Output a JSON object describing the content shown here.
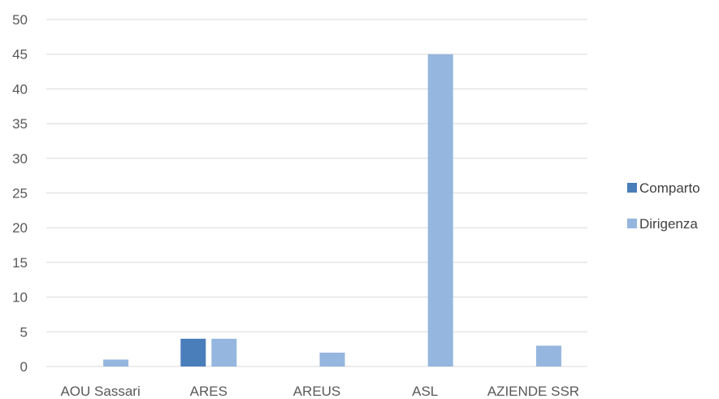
{
  "chart_data": {
    "type": "bar",
    "title": "",
    "xlabel": "",
    "ylabel": "",
    "categories": [
      "AOU Sassari",
      "ARES",
      "AREUS",
      "ASL",
      "AZIENDE SSR"
    ],
    "series": [
      {
        "name": "Comparto",
        "values": [
          0,
          4,
          0,
          0,
          0
        ],
        "color": "#4a7ebb"
      },
      {
        "name": "Dirigenza",
        "values": [
          1,
          4,
          2,
          45,
          3
        ],
        "color": "#95b6de"
      }
    ],
    "ylim": [
      0,
      50
    ],
    "yticks": [
      0,
      5,
      10,
      15,
      20,
      25,
      30,
      35,
      40,
      45,
      50
    ],
    "grid": true,
    "legend_position": "right"
  }
}
